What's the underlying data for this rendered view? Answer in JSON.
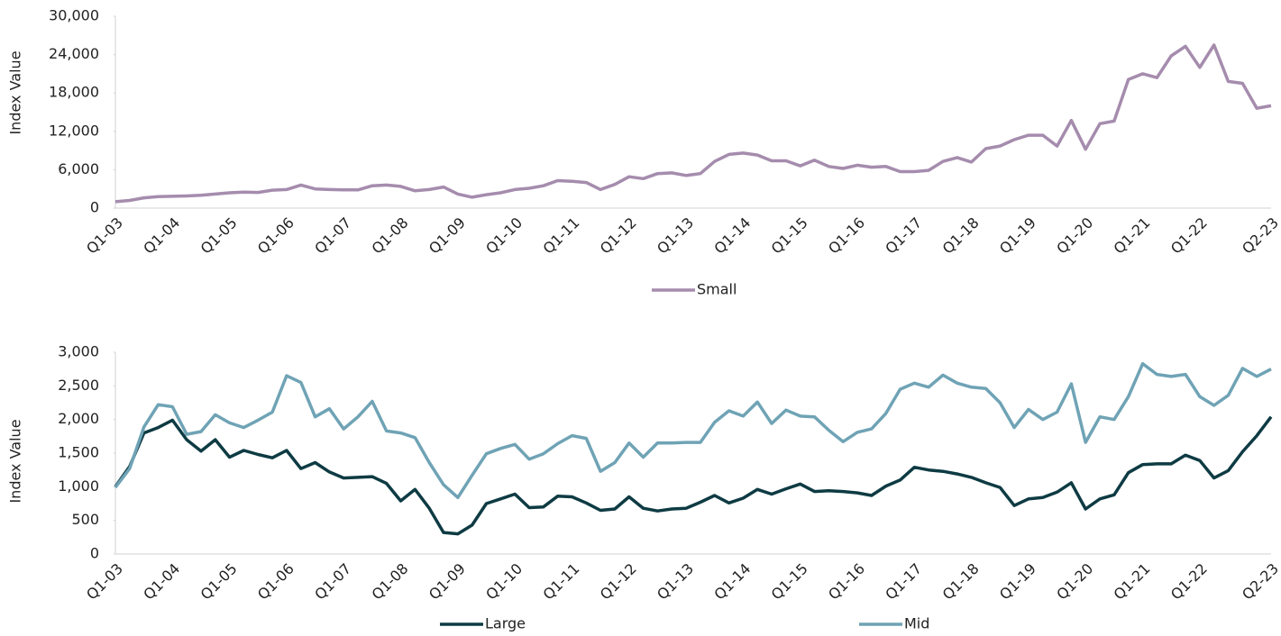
{
  "chart_data": [
    {
      "type": "line",
      "y_label": "Index Value",
      "categories": [
        "Q1-03",
        null,
        null,
        null,
        "Q1-04",
        null,
        null,
        null,
        "Q1-05",
        null,
        null,
        null,
        "Q1-06",
        null,
        null,
        null,
        "Q1-07",
        null,
        null,
        null,
        "Q1-08",
        null,
        null,
        null,
        "Q1-09",
        null,
        null,
        null,
        "Q1-10",
        null,
        null,
        null,
        "Q1-11",
        null,
        null,
        null,
        "Q1-12",
        null,
        null,
        null,
        "Q1-13",
        null,
        null,
        null,
        "Q1-14",
        null,
        null,
        null,
        "Q1-15",
        null,
        null,
        null,
        "Q1-16",
        null,
        null,
        null,
        "Q1-17",
        null,
        null,
        null,
        "Q1-18",
        null,
        null,
        null,
        "Q1-19",
        null,
        null,
        null,
        "Q1-20",
        null,
        null,
        null,
        "Q1-21",
        null,
        null,
        null,
        "Q1-22",
        null,
        null,
        null,
        null,
        "Q2-23"
      ],
      "series": [
        {
          "name": "Small",
          "color": "#a58cad",
          "values": [
            1000,
            1200,
            1600,
            1800,
            1850,
            1900,
            2000,
            2200,
            2400,
            2500,
            2450,
            2800,
            2900,
            3600,
            3000,
            2900,
            2850,
            2850,
            3500,
            3600,
            3400,
            2700,
            2900,
            3300,
            2200,
            1700,
            2100,
            2400,
            2900,
            3100,
            3500,
            4300,
            4200,
            4000,
            2900,
            3700,
            4900,
            4600,
            5400,
            5500,
            5100,
            5400,
            7300,
            8400,
            8600,
            8300,
            7400,
            7400,
            6600,
            7500,
            6500,
            6200,
            6700,
            6400,
            6500,
            5700,
            5700,
            5900,
            7300,
            7900,
            7200,
            9300,
            9700,
            10700,
            11400,
            11400,
            9700,
            13700,
            9200,
            13200,
            13600,
            20100,
            21000,
            20400,
            23800,
            25300,
            22000,
            25500,
            19800,
            19500,
            15600,
            16000
          ]
        }
      ],
      "ylim": [
        0,
        30000
      ],
      "yticks": [
        0,
        {
          "value": 6000,
          "label": "6,000"
        },
        {
          "value": 12000,
          "label": "12,000"
        },
        {
          "value": 18000,
          "label": "18,000"
        },
        {
          "value": 24000,
          "label": "24,000"
        },
        {
          "value": 30000,
          "label": "30,000"
        }
      ],
      "legend": "bottom"
    },
    {
      "type": "line",
      "y_label": "Index Value",
      "categories": [
        "Q1-03",
        null,
        null,
        null,
        "Q1-04",
        null,
        null,
        null,
        "Q1-05",
        null,
        null,
        null,
        "Q1-06",
        null,
        null,
        null,
        "Q1-07",
        null,
        null,
        null,
        "Q1-08",
        null,
        null,
        null,
        "Q1-09",
        null,
        null,
        null,
        "Q1-10",
        null,
        null,
        null,
        "Q1-11",
        null,
        null,
        null,
        "Q1-12",
        null,
        null,
        null,
        "Q1-13",
        null,
        null,
        null,
        "Q1-14",
        null,
        null,
        null,
        "Q1-15",
        null,
        null,
        null,
        "Q1-16",
        null,
        null,
        null,
        "Q1-17",
        null,
        null,
        null,
        "Q1-18",
        null,
        null,
        null,
        "Q1-19",
        null,
        null,
        null,
        "Q1-20",
        null,
        null,
        null,
        "Q1-21",
        null,
        null,
        null,
        "Q1-22",
        null,
        null,
        null,
        null,
        "Q2-23"
      ],
      "series": [
        {
          "name": "Large",
          "color": "#0e3b43",
          "values": [
            1000,
            1300,
            1800,
            1880,
            1990,
            1700,
            1530,
            1700,
            1440,
            1540,
            1480,
            1430,
            1540,
            1270,
            1360,
            1220,
            1130,
            1140,
            1150,
            1050,
            790,
            960,
            680,
            320,
            300,
            430,
            750,
            820,
            890,
            690,
            700,
            860,
            850,
            760,
            650,
            670,
            850,
            680,
            640,
            670,
            680,
            770,
            870,
            760,
            830,
            960,
            890,
            970,
            1040,
            930,
            940,
            930,
            910,
            870,
            1010,
            1100,
            1290,
            1250,
            1230,
            1190,
            1140,
            1060,
            990,
            720,
            820,
            840,
            920,
            1060,
            670,
            820,
            880,
            1210,
            1330,
            1340,
            1340,
            1470,
            1390,
            1130,
            1240,
            1520,
            1760,
            2040
          ]
        },
        {
          "name": "Mid",
          "color": "#6fa3b5",
          "values": [
            990,
            1270,
            1890,
            2220,
            2190,
            1780,
            1820,
            2070,
            1950,
            1880,
            1990,
            2110,
            2650,
            2550,
            2040,
            2160,
            1860,
            2040,
            2270,
            1830,
            1800,
            1730,
            1360,
            1030,
            840,
            1170,
            1490,
            1570,
            1630,
            1410,
            1490,
            1640,
            1760,
            1720,
            1230,
            1360,
            1650,
            1440,
            1650,
            1650,
            1660,
            1660,
            1960,
            2130,
            2050,
            2260,
            1940,
            2140,
            2050,
            2040,
            1840,
            1670,
            1810,
            1860,
            2090,
            2450,
            2540,
            2480,
            2660,
            2540,
            2480,
            2460,
            2250,
            1880,
            2150,
            2000,
            2110,
            2530,
            1660,
            2040,
            2000,
            2340,
            2830,
            2670,
            2640,
            2670,
            2340,
            2210,
            2360,
            2760,
            2640,
            2750
          ]
        }
      ],
      "ylim": [
        0,
        3000
      ],
      "yticks": [
        0,
        500,
        {
          "value": 1000,
          "label": "1,000"
        },
        {
          "value": 1500,
          "label": "1,500"
        },
        {
          "value": 2000,
          "label": "2,000"
        },
        {
          "value": 2500,
          "label": "2,500"
        },
        {
          "value": 3000,
          "label": "3,000"
        }
      ],
      "legend": "bottom"
    }
  ]
}
